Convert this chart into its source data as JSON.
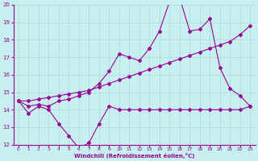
{
  "xlabel": "Windchill (Refroidissement éolien,°C)",
  "background_color": "#c8f0f0",
  "grid_color": "#b0dede",
  "line_color": "#990099",
  "xlim": [
    -0.5,
    23.5
  ],
  "ylim": [
    12,
    20
  ],
  "xticks": [
    0,
    1,
    2,
    3,
    4,
    5,
    6,
    7,
    8,
    9,
    10,
    11,
    12,
    13,
    14,
    15,
    16,
    17,
    18,
    19,
    20,
    21,
    22,
    23
  ],
  "yticks": [
    12,
    13,
    14,
    15,
    16,
    17,
    18,
    19,
    20
  ],
  "series1_x": [
    0,
    1,
    2,
    3,
    4,
    5,
    6,
    7,
    8,
    9,
    10,
    11,
    12,
    13,
    14,
    15,
    16,
    17,
    18,
    19,
    20,
    21,
    22,
    23
  ],
  "series1_y": [
    14.5,
    13.8,
    14.2,
    14.0,
    13.2,
    12.5,
    11.8,
    12.1,
    13.2,
    14.2,
    14.0,
    14.0,
    14.0,
    14.0,
    14.0,
    14.0,
    14.0,
    14.0,
    14.0,
    14.0,
    14.0,
    14.0,
    14.0,
    14.2
  ],
  "series2_x": [
    0,
    1,
    2,
    3,
    4,
    5,
    6,
    7,
    8,
    9,
    10,
    11,
    12,
    13,
    14,
    15,
    16,
    17,
    18,
    19,
    20,
    21,
    22,
    23
  ],
  "series2_y": [
    14.5,
    14.5,
    14.6,
    14.7,
    14.8,
    14.9,
    15.0,
    15.1,
    15.3,
    15.5,
    15.7,
    15.9,
    16.1,
    16.3,
    16.5,
    16.7,
    16.9,
    17.1,
    17.3,
    17.5,
    17.7,
    17.9,
    18.3,
    18.8
  ],
  "series3_x": [
    0,
    1,
    2,
    3,
    4,
    5,
    6,
    7,
    8,
    9,
    10,
    11,
    12,
    13,
    14,
    15,
    16,
    17,
    18,
    19,
    20,
    21,
    22,
    23
  ],
  "series3_y": [
    14.5,
    14.2,
    14.3,
    14.2,
    14.5,
    14.6,
    14.8,
    15.0,
    15.5,
    16.2,
    17.2,
    17.0,
    16.8,
    17.5,
    18.5,
    20.2,
    20.4,
    18.5,
    18.6,
    19.2,
    16.4,
    15.2,
    14.8,
    14.2
  ]
}
